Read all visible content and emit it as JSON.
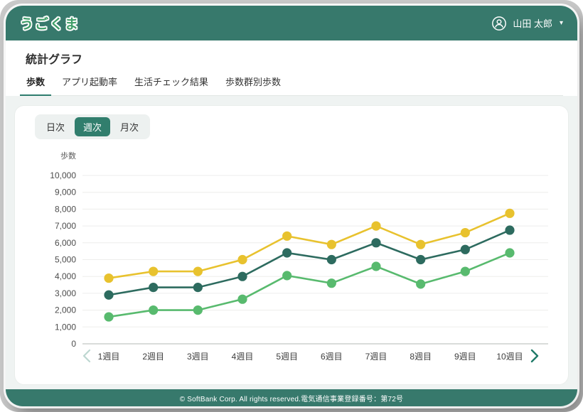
{
  "header": {
    "logo": "うごくま",
    "user_name": "山田 太郎"
  },
  "page": {
    "title": "統計グラフ"
  },
  "tabs": [
    {
      "label": "歩数",
      "active": true
    },
    {
      "label": "アプリ起動率",
      "active": false
    },
    {
      "label": "生活チェック結果",
      "active": false
    },
    {
      "label": "歩数群別歩数",
      "active": false
    }
  ],
  "period_toggle": {
    "options": [
      "日次",
      "週次",
      "月次"
    ],
    "selected": "週次"
  },
  "chart_data": {
    "type": "line",
    "title": "",
    "ylabel": "歩数",
    "xlabel": "",
    "ylim": [
      0,
      10000
    ],
    "ytick_step": 1000,
    "grid": true,
    "legend": "none",
    "categories": [
      "1週目",
      "2週目",
      "3週目",
      "4週目",
      "5週目",
      "6週目",
      "7週目",
      "8週目",
      "9週目",
      "10週目"
    ],
    "series": [
      {
        "name": "series-yellow",
        "color": "#e8c22e",
        "values": [
          3900,
          4300,
          4300,
          5000,
          6400,
          5900,
          7000,
          5900,
          6600,
          7750
        ]
      },
      {
        "name": "series-teal",
        "color": "#2d6b5f",
        "values": [
          2900,
          3350,
          3350,
          4000,
          5400,
          5000,
          6000,
          5000,
          5600,
          6750
        ]
      },
      {
        "name": "series-green",
        "color": "#58ba6e",
        "values": [
          1600,
          2000,
          2000,
          2650,
          4050,
          3600,
          4600,
          3550,
          4300,
          5400
        ]
      }
    ]
  },
  "pagination": {
    "prev_enabled": false,
    "next_enabled": true
  },
  "footer": {
    "copyright": "© SoftBank Corp. All rights reserved.電気通信事業登録番号：第72号"
  },
  "colors": {
    "header": "#37796c",
    "accent": "#317e6d",
    "logo_green": "#3f9e68",
    "chevron_enabled": "#1f7a68",
    "chevron_disabled": "#bdd7d1",
    "grid": "#ededec",
    "zero_line": "#b3b8b6"
  }
}
